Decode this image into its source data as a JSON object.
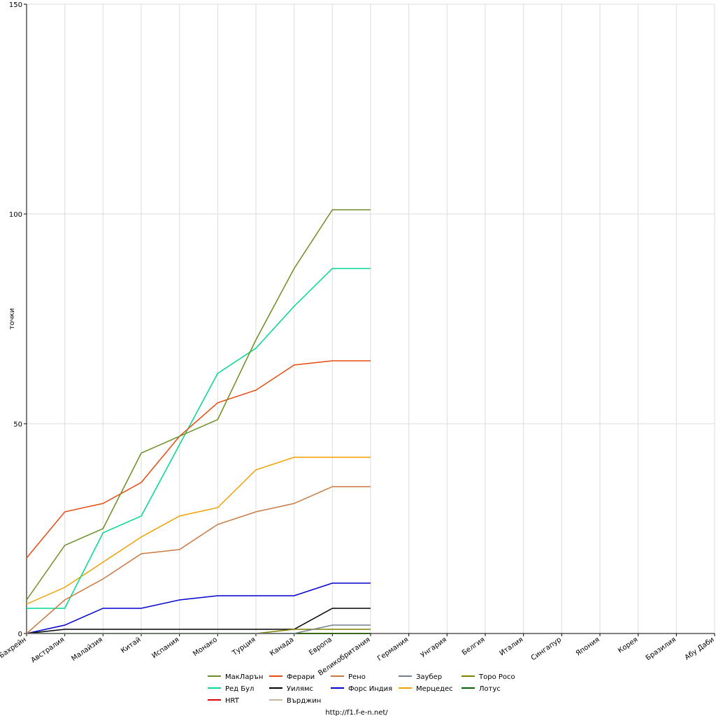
{
  "chart_data": {
    "type": "line",
    "y_label": "точки",
    "footer": "http://f1.f-e-n.net/",
    "categories": [
      "Бахрейн",
      "Австралия",
      "Малайзия",
      "Китай",
      "Испания",
      "Монако",
      "Турция",
      "Канада",
      "Европа",
      "Великобритания",
      "Германия",
      "Унгария",
      "Белгия",
      "Италия",
      "Сингапур",
      "Япония",
      "Корея",
      "Бразилия",
      "Абу Даби"
    ],
    "ylim": [
      0,
      150
    ],
    "yticks": [
      0,
      50,
      100,
      150
    ],
    "grid": true,
    "series": [
      {
        "name": "МакЛарън",
        "color": "#6b8e23",
        "values": [
          8,
          21,
          25,
          43,
          47,
          51,
          70,
          87,
          101,
          101,
          null,
          null,
          null,
          null,
          null,
          null,
          null,
          null,
          null
        ]
      },
      {
        "name": "Ферари",
        "color": "#e84a10",
        "values": [
          18,
          29,
          31,
          36,
          47,
          55,
          58,
          64,
          65,
          65,
          null,
          null,
          null,
          null,
          null,
          null,
          null,
          null,
          null
        ]
      },
      {
        "name": "Рено",
        "color": "#c87941",
        "values": [
          0,
          8,
          13,
          19,
          20,
          26,
          29,
          31,
          35,
          35,
          null,
          null,
          null,
          null,
          null,
          null,
          null,
          null,
          null
        ]
      },
      {
        "name": "Заубер",
        "color": "#708090",
        "values": [
          0,
          0,
          0,
          0,
          0,
          0,
          0,
          0,
          2,
          2,
          null,
          null,
          null,
          null,
          null,
          null,
          null,
          null,
          null
        ]
      },
      {
        "name": "Торо Росо",
        "color": "#808000",
        "values": [
          0,
          0,
          0,
          0,
          0,
          0,
          0,
          1,
          1,
          1,
          null,
          null,
          null,
          null,
          null,
          null,
          null,
          null,
          null
        ]
      },
      {
        "name": "Ред Бул",
        "color": "#00d98a",
        "values": [
          6,
          6,
          24,
          28,
          45,
          62,
          68,
          78,
          87,
          87,
          null,
          null,
          null,
          null,
          null,
          null,
          null,
          null,
          null
        ]
      },
      {
        "name": "Уилямс",
        "color": "#000000",
        "values": [
          0,
          1,
          1,
          1,
          1,
          1,
          1,
          1,
          6,
          6,
          null,
          null,
          null,
          null,
          null,
          null,
          null,
          null,
          null
        ]
      },
      {
        "name": "Форс Индия",
        "color": "#0000cc",
        "values": [
          0,
          2,
          6,
          6,
          8,
          9,
          9,
          9,
          12,
          12,
          null,
          null,
          null,
          null,
          null,
          null,
          null,
          null,
          null
        ]
      },
      {
        "name": "Мерцедес",
        "color": "#f0a000",
        "values": [
          7,
          11,
          17,
          23,
          28,
          30,
          39,
          42,
          42,
          42,
          null,
          null,
          null,
          null,
          null,
          null,
          null,
          null,
          null
        ]
      },
      {
        "name": "Лотус",
        "color": "#006400",
        "values": [
          0,
          0,
          0,
          0,
          0,
          0,
          0,
          0,
          0,
          0,
          null,
          null,
          null,
          null,
          null,
          null,
          null,
          null,
          null
        ]
      },
      {
        "name": "HRT",
        "color": "#e00000",
        "values": [
          0,
          0,
          0,
          0,
          0,
          0,
          0,
          0,
          0,
          0,
          null,
          null,
          null,
          null,
          null,
          null,
          null,
          null,
          null
        ]
      },
      {
        "name": "Върджин",
        "color": "#c8b4a0",
        "values": [
          0,
          0,
          0,
          0,
          0,
          0,
          0,
          0,
          0,
          0,
          null,
          null,
          null,
          null,
          null,
          null,
          null,
          null,
          null
        ]
      }
    ]
  }
}
